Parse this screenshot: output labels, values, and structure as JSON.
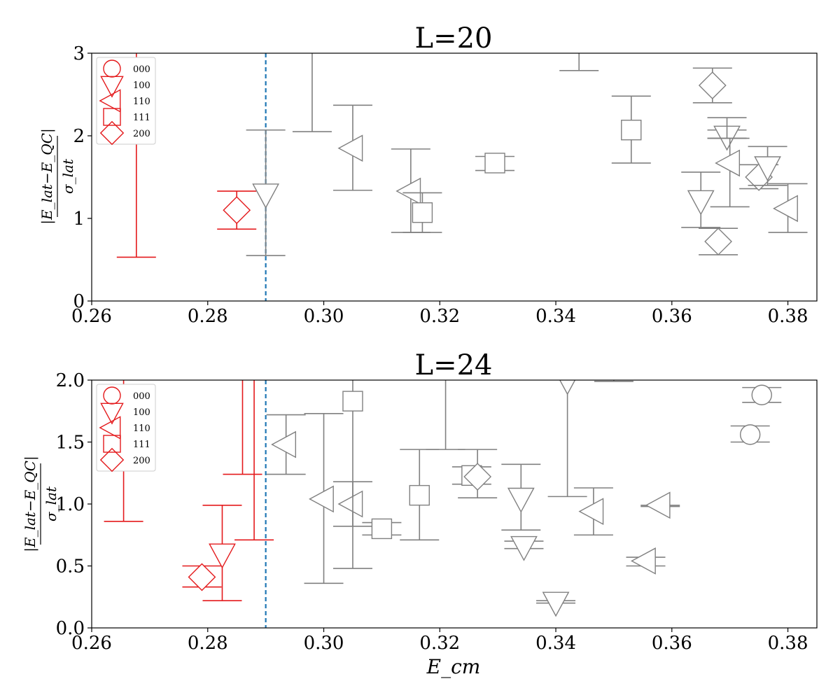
{
  "chart_data": [
    {
      "type": "scatter",
      "title": "L=20",
      "xlabel": "E_cm",
      "ylabel": {
        "numerator": "|E_lat−E_QC|",
        "denominator": "σ_lat"
      },
      "xlim": [
        0.26,
        0.385
      ],
      "ylim": [
        0,
        3
      ],
      "xticks": [
        "0.26",
        "0.28",
        "0.30",
        "0.32",
        "0.34",
        "0.36",
        "0.38"
      ],
      "yticks": [
        "0",
        "1",
        "2",
        "3"
      ],
      "vline": {
        "x": 0.29,
        "color": "#1f77b4"
      },
      "legend": {
        "position": "top-left",
        "entries": [
          "000",
          "100",
          "110",
          "111",
          "200"
        ]
      },
      "colors": {
        "highlight": "#e41a1c",
        "normal": "#808080"
      },
      "points": [
        {
          "x": 0.2677,
          "y": 1.8,
          "lo": 0.53,
          "hi": 3.3,
          "marker": "none",
          "color": "red"
        },
        {
          "x": 0.285,
          "y": 1.1,
          "lo": 0.87,
          "hi": 1.33,
          "marker": "diamond",
          "color": "red"
        },
        {
          "x": 0.29,
          "y": 1.3,
          "lo": 0.55,
          "hi": 2.07,
          "marker": "tri-down",
          "color": "gray"
        },
        {
          "x": 0.298,
          "y": 3.3,
          "lo": 2.05,
          "hi": 4.0,
          "marker": "none",
          "color": "gray"
        },
        {
          "x": 0.305,
          "y": 1.85,
          "lo": 1.34,
          "hi": 2.37,
          "marker": "tri-left",
          "color": "gray"
        },
        {
          "x": 0.315,
          "y": 1.33,
          "lo": 0.83,
          "hi": 1.84,
          "marker": "tri-left",
          "color": "gray"
        },
        {
          "x": 0.317,
          "y": 1.07,
          "lo": 0.83,
          "hi": 1.31,
          "marker": "square",
          "color": "gray"
        },
        {
          "x": 0.3295,
          "y": 1.67,
          "lo": 1.58,
          "hi": 1.75,
          "marker": "square",
          "color": "gray"
        },
        {
          "x": 0.344,
          "y": 3.5,
          "lo": 2.79,
          "hi": 4.2,
          "marker": "none",
          "color": "gray"
        },
        {
          "x": 0.353,
          "y": 2.07,
          "lo": 1.67,
          "hi": 2.48,
          "marker": "square",
          "color": "gray"
        },
        {
          "x": 0.365,
          "y": 1.22,
          "lo": 0.89,
          "hi": 1.56,
          "marker": "tri-down",
          "color": "gray"
        },
        {
          "x": 0.367,
          "y": 2.61,
          "lo": 2.4,
          "hi": 2.82,
          "marker": "diamond",
          "color": "gray"
        },
        {
          "x": 0.368,
          "y": 0.72,
          "lo": 0.56,
          "hi": 0.88,
          "marker": "diamond",
          "color": "gray"
        },
        {
          "x": 0.3695,
          "y": 2.0,
          "lo": 1.97,
          "hi": 2.07,
          "marker": "tri-down",
          "color": "gray"
        },
        {
          "x": 0.3695,
          "y": 1.93,
          "lo": 1.97,
          "hi": 2.22,
          "marker": "none",
          "color": "gray"
        },
        {
          "x": 0.37,
          "y": 1.67,
          "lo": 1.14,
          "hi": 1.97,
          "marker": "tri-left",
          "color": "gray"
        },
        {
          "x": 0.375,
          "y": 1.5,
          "lo": 1.36,
          "hi": 1.65,
          "marker": "diamond",
          "color": "gray"
        },
        {
          "x": 0.3765,
          "y": 1.63,
          "lo": 1.4,
          "hi": 1.87,
          "marker": "tri-down",
          "color": "gray"
        },
        {
          "x": 0.38,
          "y": 1.12,
          "lo": 0.83,
          "hi": 1.42,
          "marker": "tri-left",
          "color": "gray"
        }
      ]
    },
    {
      "type": "scatter",
      "title": "L=24",
      "xlabel": "E_cm",
      "ylabel": {
        "numerator": "|E_lat−E_QC|",
        "denominator": "σ_lat"
      },
      "xlim": [
        0.26,
        0.385
      ],
      "ylim": [
        0,
        2
      ],
      "xticks": [
        "0.26",
        "0.28",
        "0.30",
        "0.32",
        "0.34",
        "0.36",
        "0.38"
      ],
      "yticks": [
        "0.0",
        "0.5",
        "1.0",
        "1.5",
        "2.0"
      ],
      "vline": {
        "x": 0.29,
        "color": "#1f77b4"
      },
      "legend": {
        "position": "top-left",
        "entries": [
          "000",
          "100",
          "110",
          "111",
          "200"
        ]
      },
      "colors": {
        "highlight": "#e41a1c",
        "normal": "#808080"
      },
      "points": [
        {
          "x": 0.2655,
          "y": 1.7,
          "lo": 0.86,
          "hi": 2.3,
          "marker": "none",
          "color": "red"
        },
        {
          "x": 0.279,
          "y": 0.41,
          "lo": 0.33,
          "hi": 0.5,
          "marker": "diamond",
          "color": "red"
        },
        {
          "x": 0.2825,
          "y": 0.6,
          "lo": 0.22,
          "hi": 0.99,
          "marker": "tri-down",
          "color": "red"
        },
        {
          "x": 0.286,
          "y": 2.2,
          "lo": 1.24,
          "hi": 2.5,
          "marker": "none",
          "color": "red"
        },
        {
          "x": 0.288,
          "y": 2.2,
          "lo": 0.71,
          "hi": 2.5,
          "marker": "none",
          "color": "red"
        },
        {
          "x": 0.2935,
          "y": 1.48,
          "lo": 1.24,
          "hi": 1.72,
          "marker": "tri-left",
          "color": "gray"
        },
        {
          "x": 0.3,
          "y": 1.04,
          "lo": 0.36,
          "hi": 1.73,
          "marker": "tri-left",
          "color": "gray"
        },
        {
          "x": 0.305,
          "y": 1.0,
          "lo": 0.82,
          "hi": 1.18,
          "marker": "tri-left",
          "color": "gray"
        },
        {
          "x": 0.305,
          "y": 1.83,
          "lo": 0.48,
          "hi": 2.2,
          "marker": "square",
          "color": "gray"
        },
        {
          "x": 0.31,
          "y": 0.8,
          "lo": 0.75,
          "hi": 0.85,
          "marker": "square",
          "color": "gray"
        },
        {
          "x": 0.3165,
          "y": 1.07,
          "lo": 0.71,
          "hi": 1.44,
          "marker": "square",
          "color": "gray"
        },
        {
          "x": 0.321,
          "y": 2.2,
          "lo": 1.44,
          "hi": 2.5,
          "marker": "none",
          "color": "gray"
        },
        {
          "x": 0.3255,
          "y": 1.23,
          "lo": 1.16,
          "hi": 1.3,
          "marker": "square",
          "color": "gray"
        },
        {
          "x": 0.3265,
          "y": 1.22,
          "lo": 1.05,
          "hi": 1.44,
          "marker": "diamond",
          "color": "gray"
        },
        {
          "x": 0.334,
          "y": 1.05,
          "lo": 0.79,
          "hi": 1.32,
          "marker": "tri-down",
          "color": "gray"
        },
        {
          "x": 0.3345,
          "y": 0.66,
          "lo": 0.64,
          "hi": 0.7,
          "marker": "tri-down",
          "color": "gray"
        },
        {
          "x": 0.34,
          "y": 0.21,
          "lo": 0.2,
          "hi": 0.22,
          "marker": "tri-down",
          "color": "gray"
        },
        {
          "x": 0.342,
          "y": 2.0,
          "lo": 1.06,
          "hi": 2.6,
          "marker": "tri-down",
          "color": "gray"
        },
        {
          "x": 0.3465,
          "y": 0.94,
          "lo": 0.75,
          "hi": 1.13,
          "marker": "tri-left",
          "color": "gray"
        },
        {
          "x": 0.35,
          "y": 2.1,
          "lo": 1.99,
          "hi": 2.4,
          "marker": "none",
          "color": "gray"
        },
        {
          "x": 0.3555,
          "y": 0.54,
          "lo": 0.5,
          "hi": 0.57,
          "marker": "tri-left",
          "color": "gray"
        },
        {
          "x": 0.358,
          "y": 0.99,
          "lo": 0.98,
          "hi": 0.99,
          "marker": "tri-left",
          "color": "gray"
        },
        {
          "x": 0.3735,
          "y": 1.56,
          "lo": 1.5,
          "hi": 1.63,
          "marker": "circle",
          "color": "gray"
        },
        {
          "x": 0.3755,
          "y": 1.88,
          "lo": 1.82,
          "hi": 1.94,
          "marker": "circle",
          "color": "gray"
        }
      ]
    }
  ]
}
